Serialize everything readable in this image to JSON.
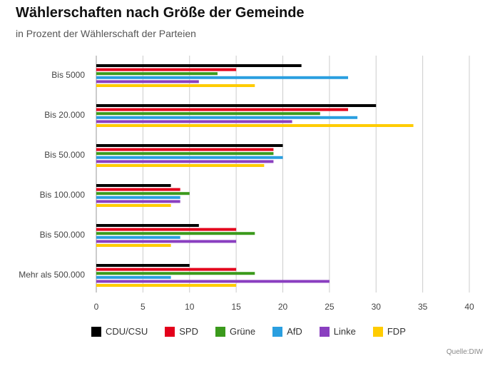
{
  "chart_data": {
    "type": "bar",
    "orientation": "horizontal",
    "title": "Wählerschaften nach Größe der Gemeinde",
    "subtitle": "in Prozent der Wählerschaft der Parteien",
    "categories": [
      "Bis 5000",
      "Bis 20.000",
      "Bis 50.000",
      "Bis 100.000",
      "Bis 500.000",
      "Mehr als 500.000"
    ],
    "series": [
      {
        "name": "CDU/CSU",
        "color": "#000000",
        "values": [
          22,
          30,
          20,
          8,
          11,
          10
        ]
      },
      {
        "name": "SPD",
        "color": "#e3001b",
        "values": [
          15,
          27,
          19,
          9,
          15,
          15
        ]
      },
      {
        "name": "Grüne",
        "color": "#3b9a1c",
        "values": [
          13,
          24,
          19,
          10,
          17,
          17
        ]
      },
      {
        "name": "AfD",
        "color": "#2a9fe0",
        "values": [
          27,
          28,
          20,
          9,
          9,
          8
        ]
      },
      {
        "name": "Linke",
        "color": "#8a3fc0",
        "values": [
          11,
          21,
          19,
          9,
          15,
          25
        ]
      },
      {
        "name": "FDP",
        "color": "#ffcc00",
        "values": [
          17,
          34,
          18,
          8,
          8,
          15
        ]
      }
    ],
    "xlim": [
      0,
      40
    ],
    "xticks": [
      0,
      5,
      10,
      15,
      20,
      25,
      30,
      35,
      40
    ],
    "grid": "vertical",
    "legend": "bottom",
    "source": "Quelle:DIW"
  }
}
